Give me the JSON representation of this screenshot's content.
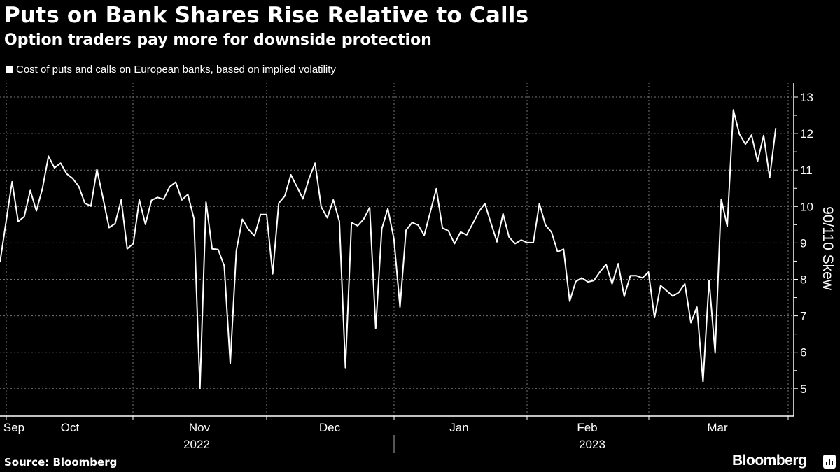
{
  "header": {
    "title": "Puts on Bank Shares Rise Relative to Calls",
    "subtitle": "Option traders pay more for downside protection"
  },
  "footer": {
    "source": "Source: Bloomberg",
    "brand": "Bloomberg"
  },
  "colors": {
    "background": "#000000",
    "line": "#ffffff",
    "grid": "#666666"
  },
  "chart_data": {
    "type": "line",
    "title": "Puts on Bank Shares Rise Relative to Calls",
    "subtitle": "Option traders pay more for downside protection",
    "legend": [
      {
        "label": "Cost of puts and calls on European banks, based on implied volatility",
        "placement": "top-left"
      }
    ],
    "xlabel": "",
    "ylabel": "90/110 Skew",
    "ylim": [
      4.3,
      13.4
    ],
    "yticks": [
      "13",
      "12",
      "11",
      "10",
      "9",
      "8",
      "7",
      "6",
      "5"
    ],
    "ytick_values": [
      13,
      12,
      11,
      10,
      9,
      8,
      7,
      6,
      5
    ],
    "x_range": [
      "2022-09-mid",
      "2023-03-mid"
    ],
    "month_labels": [
      "Sep",
      "Oct",
      "Nov",
      "Dec",
      "Jan",
      "Feb",
      "Mar"
    ],
    "year_labels": [
      "2022",
      "2023"
    ],
    "grid": true,
    "series": [
      {
        "name": "Cost of puts and calls on European banks, based on implied volatility",
        "values": [
          8.47,
          9.58,
          10.68,
          9.59,
          9.72,
          10.44,
          9.88,
          10.49,
          11.38,
          11.06,
          11.19,
          10.9,
          10.77,
          10.55,
          10.09,
          10.01,
          11.02,
          10.23,
          9.42,
          9.53,
          10.18,
          8.84,
          8.98,
          10.18,
          9.51,
          10.17,
          10.25,
          10.2,
          10.54,
          10.67,
          10.18,
          10.33,
          9.67,
          5.0,
          10.12,
          8.84,
          8.82,
          8.37,
          5.69,
          8.79,
          9.65,
          9.37,
          9.19,
          9.78,
          9.78,
          8.15,
          10.09,
          10.29,
          10.87,
          10.54,
          10.21,
          10.77,
          11.19,
          9.99,
          9.69,
          10.18,
          9.59,
          5.58,
          9.56,
          9.47,
          9.65,
          9.97,
          6.65,
          9.39,
          9.94,
          9.11,
          7.24,
          9.35,
          9.56,
          9.49,
          9.21,
          9.85,
          10.49,
          9.41,
          9.33,
          8.98,
          9.3,
          9.22,
          9.53,
          9.85,
          10.08,
          9.55,
          9.03,
          9.8,
          9.16,
          8.98,
          9.08,
          9.01,
          9.01,
          10.08,
          9.49,
          9.3,
          8.76,
          8.83,
          7.4,
          7.94,
          8.04,
          7.93,
          7.97,
          8.21,
          8.41,
          7.88,
          8.43,
          7.53,
          8.1,
          8.1,
          8.04,
          8.2,
          6.95,
          7.83,
          7.69,
          7.54,
          7.64,
          7.88,
          6.81,
          7.24,
          5.19,
          7.97,
          5.98,
          10.2,
          9.46,
          12.65,
          11.99,
          11.71,
          11.96,
          11.24,
          11.95,
          10.79,
          12.15
        ]
      }
    ]
  }
}
